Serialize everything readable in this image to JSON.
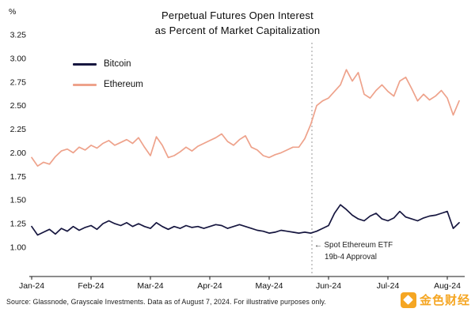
{
  "title": {
    "line1": "Perpetual Futures Open Interest",
    "line2": "as Percent of Market Capitalization"
  },
  "footer": "Source: Glassnode, Grayscale Investments. Data as of August 7, 2024. For illustrative purposes only.",
  "watermark": {
    "text": "金色财经",
    "color": "#f5a623"
  },
  "annotation": {
    "line1": "← Spot Ethereum ETF",
    "line2": "19b-4 Approval"
  },
  "chart_data": {
    "type": "line",
    "title": "Perpetual Futures Open Interest as Percent of Market Capitalization",
    "xlabel": "",
    "ylabel": "%",
    "xlim": [
      0,
      7.2
    ],
    "ylim": [
      1.0,
      3.25
    ],
    "grid": false,
    "legend_position": "upper-left",
    "x_ticks": [
      0,
      1,
      2,
      3,
      4,
      5,
      6,
      7
    ],
    "x_tick_labels": [
      "Jan-24",
      "Feb-24",
      "Mar-24",
      "Apr-24",
      "May-24",
      "Jun-24",
      "Jul-24",
      "Aug-24"
    ],
    "y_ticks": [
      1.0,
      1.25,
      1.5,
      1.75,
      2.0,
      2.25,
      2.5,
      2.75,
      3.0,
      3.25
    ],
    "y_tick_labels": [
      "1.00",
      "1.25",
      "1.50",
      "1.75",
      "2.00",
      "2.25",
      "2.50",
      "2.75",
      "3.00",
      "3.25"
    ],
    "vline": {
      "x": 4.72,
      "style": "dotted",
      "color": "#9a9a9a",
      "label": "Spot Ethereum ETF 19b-4 Approval"
    },
    "x": [
      0,
      0.1,
      0.2,
      0.3,
      0.4,
      0.5,
      0.6,
      0.7,
      0.8,
      0.9,
      1,
      1.1,
      1.2,
      1.3,
      1.4,
      1.5,
      1.6,
      1.7,
      1.8,
      1.9,
      2,
      2.1,
      2.2,
      2.3,
      2.4,
      2.5,
      2.6,
      2.7,
      2.8,
      2.9,
      3,
      3.1,
      3.2,
      3.3,
      3.4,
      3.5,
      3.6,
      3.7,
      3.8,
      3.9,
      4,
      4.1,
      4.2,
      4.3,
      4.4,
      4.5,
      4.6,
      4.7,
      4.8,
      4.9,
      5,
      5.1,
      5.2,
      5.3,
      5.4,
      5.5,
      5.6,
      5.7,
      5.8,
      5.9,
      6,
      6.1,
      6.2,
      6.3,
      6.4,
      6.5,
      6.6,
      6.7,
      6.8,
      6.9,
      7,
      7.1,
      7.2
    ],
    "series": [
      {
        "name": "Bitcoin",
        "color": "#16163f",
        "y": [
          1.22,
          1.13,
          1.16,
          1.19,
          1.14,
          1.2,
          1.17,
          1.22,
          1.18,
          1.21,
          1.23,
          1.19,
          1.25,
          1.28,
          1.25,
          1.23,
          1.26,
          1.22,
          1.25,
          1.22,
          1.2,
          1.26,
          1.22,
          1.19,
          1.22,
          1.2,
          1.23,
          1.21,
          1.22,
          1.2,
          1.22,
          1.24,
          1.23,
          1.2,
          1.22,
          1.24,
          1.22,
          1.2,
          1.18,
          1.17,
          1.15,
          1.16,
          1.18,
          1.17,
          1.16,
          1.15,
          1.16,
          1.15,
          1.17,
          1.2,
          1.23,
          1.36,
          1.45,
          1.4,
          1.34,
          1.3,
          1.28,
          1.33,
          1.36,
          1.3,
          1.28,
          1.31,
          1.38,
          1.32,
          1.3,
          1.28,
          1.31,
          1.33,
          1.34,
          1.36,
          1.38,
          1.2,
          1.26
        ]
      },
      {
        "name": "Ethereum",
        "color": "#eea28b",
        "y": [
          1.95,
          1.86,
          1.9,
          1.88,
          1.96,
          2.02,
          2.04,
          2.0,
          2.06,
          2.03,
          2.08,
          2.05,
          2.1,
          2.13,
          2.08,
          2.11,
          2.14,
          2.1,
          2.16,
          2.06,
          1.97,
          2.17,
          2.08,
          1.95,
          1.97,
          2.01,
          2.06,
          2.02,
          2.07,
          2.1,
          2.13,
          2.16,
          2.2,
          2.12,
          2.08,
          2.14,
          2.18,
          2.06,
          2.03,
          1.97,
          1.95,
          1.98,
          2.0,
          2.03,
          2.06,
          2.06,
          2.15,
          2.3,
          2.5,
          2.55,
          2.58,
          2.65,
          2.72,
          2.88,
          2.76,
          2.85,
          2.62,
          2.58,
          2.66,
          2.72,
          2.65,
          2.6,
          2.76,
          2.8,
          2.68,
          2.55,
          2.62,
          2.56,
          2.6,
          2.66,
          2.58,
          2.4,
          2.55
        ]
      }
    ]
  }
}
